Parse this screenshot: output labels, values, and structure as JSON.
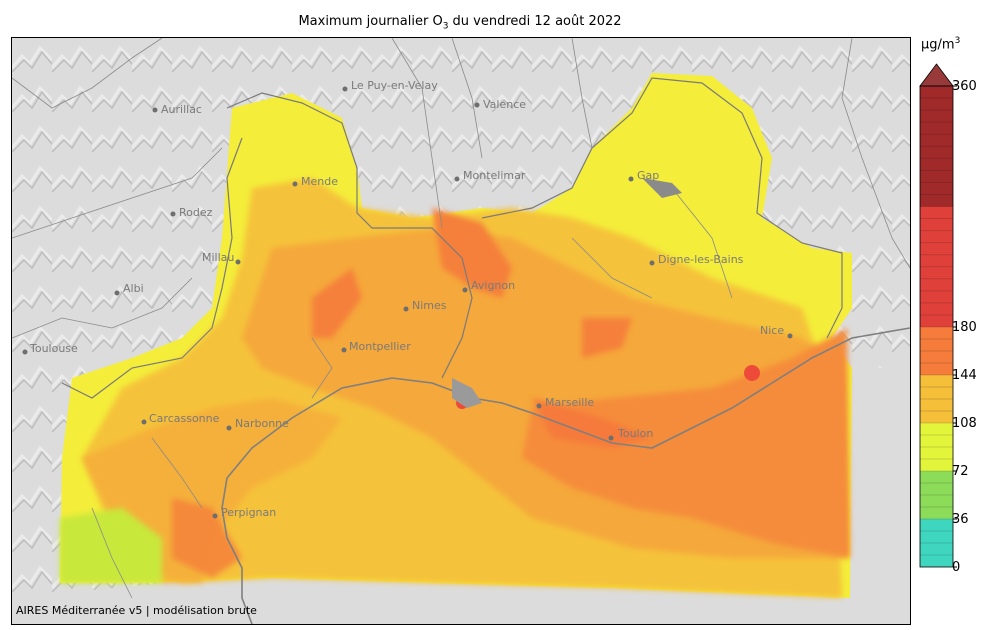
{
  "title": {
    "prefix": "Maximum journalier O",
    "subscript": "3",
    "suffix": " du vendredi 12 août 2022"
  },
  "credit": "AIRES Méditerranée v5 | modélisation brute",
  "colorbar": {
    "unit_base": "µg/m",
    "unit_sup": "3",
    "min": 0,
    "max": 360,
    "extend": "max",
    "ticks": [
      0,
      36,
      72,
      108,
      144,
      180,
      360
    ],
    "tick_labels": [
      "0",
      "36",
      "72",
      "108",
      "144",
      "180",
      "360"
    ],
    "colors": [
      {
        "from": 0,
        "to": 36,
        "color": "#3fd6c0"
      },
      {
        "from": 36,
        "to": 72,
        "color": "#8cdc5a"
      },
      {
        "from": 72,
        "to": 108,
        "color": "#e3f53a"
      },
      {
        "from": 108,
        "to": 144,
        "color": "#f5bf3a"
      },
      {
        "from": 144,
        "to": 180,
        "color": "#f57c3a"
      },
      {
        "from": 180,
        "to": 270,
        "color": "#e0403a"
      },
      {
        "from": 270,
        "to": 360,
        "color": "#a02a2a"
      }
    ],
    "extend_color": "#983a3a"
  },
  "cities": [
    {
      "name": "Aurillac",
      "id": "aurillac"
    },
    {
      "name": "Le Puy-en-Velay",
      "id": "le-puy-en-velay"
    },
    {
      "name": "Valence",
      "id": "valence"
    },
    {
      "name": "Mende",
      "id": "mende"
    },
    {
      "name": "Montelimar",
      "id": "montelimar"
    },
    {
      "name": "Gap",
      "id": "gap"
    },
    {
      "name": "Rodez",
      "id": "rodez"
    },
    {
      "name": "Millau",
      "id": "millau"
    },
    {
      "name": "Digne-les-Bains",
      "id": "digne-les-bains"
    },
    {
      "name": "Albi",
      "id": "albi"
    },
    {
      "name": "Avignon",
      "id": "avignon"
    },
    {
      "name": "Nimes",
      "id": "nimes"
    },
    {
      "name": "Nice",
      "id": "nice"
    },
    {
      "name": "Toulouse",
      "id": "toulouse"
    },
    {
      "name": "Montpellier",
      "id": "montpellier"
    },
    {
      "name": "Marseille",
      "id": "marseille"
    },
    {
      "name": "Carcassonne",
      "id": "carcassonne"
    },
    {
      "name": "Narbonne",
      "id": "narbonne"
    },
    {
      "name": "Toulon",
      "id": "toulon"
    },
    {
      "name": "Perpignan",
      "id": "perpignan"
    }
  ]
}
